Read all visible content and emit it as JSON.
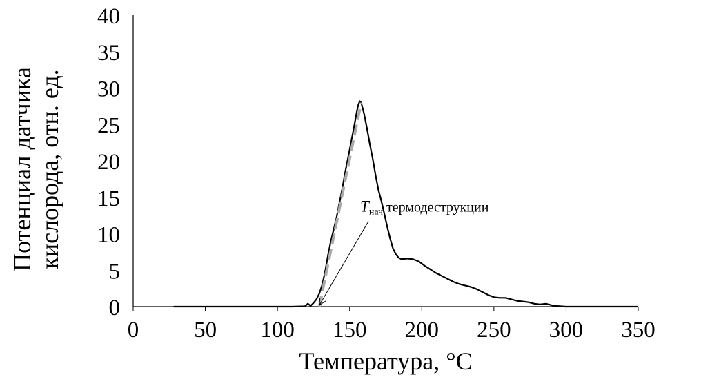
{
  "chart_data": {
    "type": "line",
    "title": "",
    "xlabel": "Температура, °C",
    "ylabel_lines": [
      "Потенциал датчика",
      "кислорода, отн. ед."
    ],
    "xlim": [
      0,
      350
    ],
    "ylim": [
      0,
      40
    ],
    "x_ticks": [
      "0",
      "50",
      "100",
      "150",
      "200",
      "250",
      "300",
      "350"
    ],
    "y_ticks": [
      "0",
      "5",
      "10",
      "15",
      "20",
      "25",
      "30",
      "35",
      "40"
    ],
    "grid": false,
    "legend": "none",
    "series": [
      {
        "color": "#000000",
        "points": [
          [
            28,
            0
          ],
          [
            60,
            0
          ],
          [
            90,
            0
          ],
          [
            110,
            0
          ],
          [
            119,
            0.05
          ],
          [
            121,
            0.4
          ],
          [
            123,
            0.1
          ],
          [
            125,
            0.5
          ],
          [
            127,
            1.0
          ],
          [
            129,
            1.8
          ],
          [
            131,
            3.0
          ],
          [
            133,
            4.8
          ],
          [
            135,
            7.0
          ],
          [
            137,
            9.0
          ],
          [
            139,
            10.6
          ],
          [
            141,
            12.3
          ],
          [
            143,
            14.3
          ],
          [
            145,
            16.3
          ],
          [
            147,
            18.5
          ],
          [
            149,
            20.5
          ],
          [
            151,
            22.5
          ],
          [
            153,
            24.6
          ],
          [
            155,
            26.8
          ],
          [
            156,
            27.7
          ],
          [
            157,
            28.2
          ],
          [
            158,
            28.0
          ],
          [
            160,
            26.5
          ],
          [
            162,
            24.5
          ],
          [
            164,
            22.3
          ],
          [
            166,
            20.3
          ],
          [
            168,
            18.0
          ],
          [
            170,
            16.0
          ],
          [
            172,
            14.5
          ],
          [
            174,
            12.8
          ],
          [
            176,
            11.0
          ],
          [
            178,
            9.4
          ],
          [
            180,
            8.0
          ],
          [
            182,
            7.2
          ],
          [
            184,
            6.7
          ],
          [
            186,
            6.5
          ],
          [
            190,
            6.6
          ],
          [
            194,
            6.5
          ],
          [
            198,
            6.2
          ],
          [
            202,
            5.6
          ],
          [
            206,
            5.1
          ],
          [
            210,
            4.6
          ],
          [
            214,
            4.2
          ],
          [
            218,
            3.8
          ],
          [
            222,
            3.4
          ],
          [
            226,
            3.1
          ],
          [
            230,
            2.9
          ],
          [
            234,
            2.7
          ],
          [
            238,
            2.4
          ],
          [
            242,
            2.0
          ],
          [
            246,
            1.6
          ],
          [
            250,
            1.3
          ],
          [
            254,
            1.2
          ],
          [
            258,
            1.2
          ],
          [
            262,
            1.0
          ],
          [
            266,
            0.8
          ],
          [
            270,
            0.7
          ],
          [
            274,
            0.6
          ],
          [
            278,
            0.4
          ],
          [
            282,
            0.3
          ],
          [
            286,
            0.4
          ],
          [
            290,
            0.2
          ],
          [
            292,
            0.1
          ],
          [
            300,
            0
          ],
          [
            350,
            0
          ]
        ]
      },
      {
        "color": "#aaaaaa",
        "dashed": true,
        "points": [
          [
            129,
            0
          ],
          [
            158,
            28
          ]
        ]
      }
    ],
    "annotation": {
      "symbol": "T",
      "subscript": "нач",
      "text": " термодеструкции",
      "label_at": [
        99,
        11.9
      ],
      "arrow_to": [
        129,
        0
      ]
    }
  }
}
